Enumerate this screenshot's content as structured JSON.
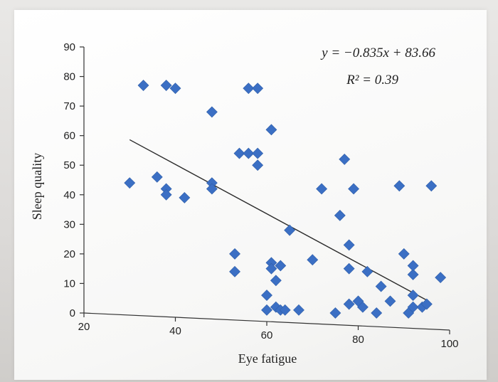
{
  "chart_data": {
    "type": "scatter",
    "xlabel": "Eye fatigue",
    "ylabel": "Sleep quality",
    "xlim": [
      20,
      100
    ],
    "ylim": [
      0,
      90
    ],
    "xticks": [
      "20",
      "40",
      "60",
      "80",
      "100"
    ],
    "yticks": [
      "0",
      "10",
      "20",
      "30",
      "40",
      "50",
      "60",
      "70",
      "80",
      "90"
    ],
    "annotations": {
      "equation": "y = −0.835x + 83.66",
      "r_squared": "R² = 0.39"
    },
    "trendline": {
      "slope": -0.835,
      "intercept": 83.66,
      "x_start": 30,
      "x_end": 95
    },
    "marker_color": "#3b6fc4",
    "points": [
      [
        30,
        44
      ],
      [
        33,
        77
      ],
      [
        36,
        46
      ],
      [
        38,
        77
      ],
      [
        38,
        42
      ],
      [
        38,
        40
      ],
      [
        40,
        76
      ],
      [
        42,
        39
      ],
      [
        48,
        68
      ],
      [
        48,
        44
      ],
      [
        48,
        42
      ],
      [
        53,
        20
      ],
      [
        53,
        14
      ],
      [
        54,
        54
      ],
      [
        56,
        54
      ],
      [
        56,
        76
      ],
      [
        58,
        54
      ],
      [
        58,
        50
      ],
      [
        58,
        76
      ],
      [
        60,
        1
      ],
      [
        60,
        6
      ],
      [
        61,
        17
      ],
      [
        61,
        15
      ],
      [
        61,
        62
      ],
      [
        62,
        11
      ],
      [
        62,
        2
      ],
      [
        63,
        16
      ],
      [
        63,
        1
      ],
      [
        64,
        1
      ],
      [
        65,
        28
      ],
      [
        67,
        1
      ],
      [
        70,
        18
      ],
      [
        72,
        42
      ],
      [
        75,
        0
      ],
      [
        76,
        33
      ],
      [
        77,
        52
      ],
      [
        78,
        3
      ],
      [
        78,
        23
      ],
      [
        78,
        15
      ],
      [
        79,
        42
      ],
      [
        80,
        4
      ],
      [
        81,
        2
      ],
      [
        82,
        14
      ],
      [
        84,
        0
      ],
      [
        85,
        9
      ],
      [
        87,
        4
      ],
      [
        89,
        43
      ],
      [
        90,
        20
      ],
      [
        91,
        0
      ],
      [
        92,
        6
      ],
      [
        92,
        2
      ],
      [
        92,
        13
      ],
      [
        92,
        16
      ],
      [
        94,
        2
      ],
      [
        95,
        3
      ],
      [
        96,
        43
      ],
      [
        98,
        12
      ]
    ]
  }
}
